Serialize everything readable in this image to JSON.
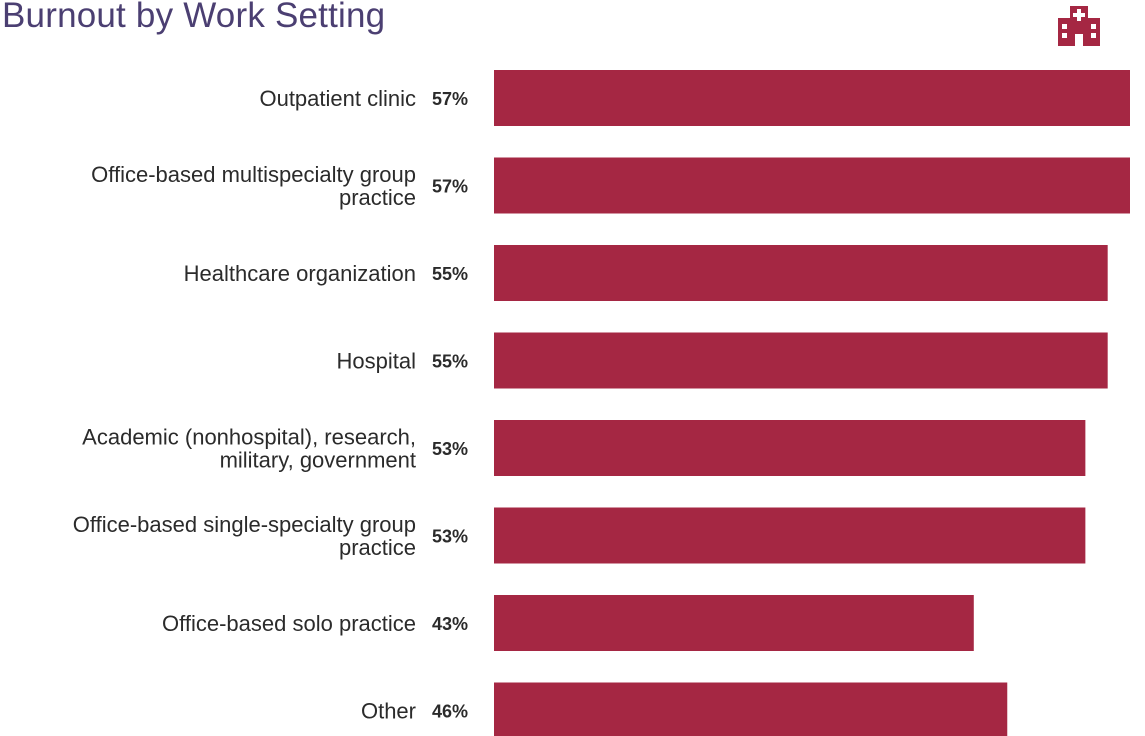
{
  "colors": {
    "bar": "#a52743",
    "title": "#4b3f72",
    "text": "#2b2b2b"
  },
  "icons": {
    "logo": "hospital-icon"
  },
  "chart_data": {
    "type": "bar",
    "orientation": "horizontal",
    "title": "Burnout by Work Setting",
    "categories": [
      [
        "Outpatient clinic"
      ],
      [
        "Office-based multispecialty group",
        "practice"
      ],
      [
        "Healthcare organization"
      ],
      [
        "Hospital"
      ],
      [
        "Academic (nonhospital), research,",
        "military, government"
      ],
      [
        "Office-based single-specialty group",
        "practice"
      ],
      [
        "Office-based solo practice"
      ],
      [
        "Other"
      ]
    ],
    "values": [
      57,
      57,
      55,
      55,
      53,
      53,
      43,
      46
    ],
    "value_labels": [
      "57%",
      "57%",
      "55%",
      "55%",
      "53%",
      "53%",
      "43%",
      "46%"
    ],
    "unit": "%",
    "grid": false,
    "legend": "none"
  }
}
